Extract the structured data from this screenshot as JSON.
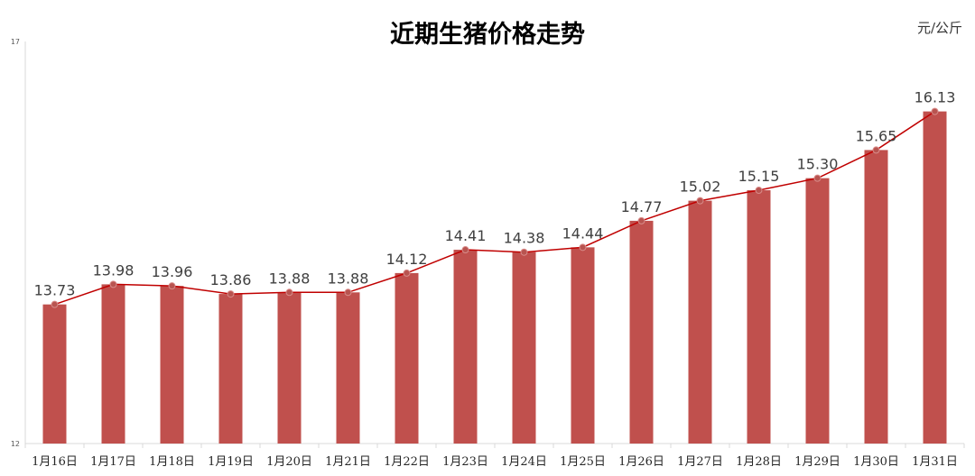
{
  "chart_data": {
    "type": "bar",
    "title": "近期生猪价格走势",
    "unit": "元/公斤",
    "categories": [
      "1月16日",
      "1月17日",
      "1月18日",
      "1月19日",
      "1月20日",
      "1月21日",
      "1月22日",
      "1月23日",
      "1月24日",
      "1月25日",
      "1月26日",
      "1月27日",
      "1月28日",
      "1月29日",
      "1月30日",
      "1月31日"
    ],
    "series": [
      {
        "type": "bar",
        "values": [
          13.73,
          13.98,
          13.96,
          13.86,
          13.88,
          13.88,
          14.12,
          14.41,
          14.38,
          14.44,
          14.77,
          15.02,
          15.15,
          15.3,
          15.65,
          16.13
        ]
      },
      {
        "type": "line",
        "values": [
          13.73,
          13.98,
          13.96,
          13.86,
          13.88,
          13.88,
          14.12,
          14.41,
          14.38,
          14.44,
          14.77,
          15.02,
          15.15,
          15.3,
          15.65,
          16.13
        ]
      }
    ],
    "data_labels": [
      "13.73",
      "13.98",
      "13.96",
      "13.86",
      "13.88",
      "13.88",
      "14.12",
      "14.41",
      "14.38",
      "14.44",
      "14.77",
      "15.02",
      "15.15",
      "15.30",
      "15.65",
      "16.13"
    ],
    "ylim": [
      12,
      17
    ],
    "y_tick_labels": [
      "17",
      "12"
    ],
    "grid": false,
    "colors": {
      "bar": "#c0504d",
      "line": "#c00000",
      "marker": "#b85450",
      "label": "#404040"
    }
  }
}
